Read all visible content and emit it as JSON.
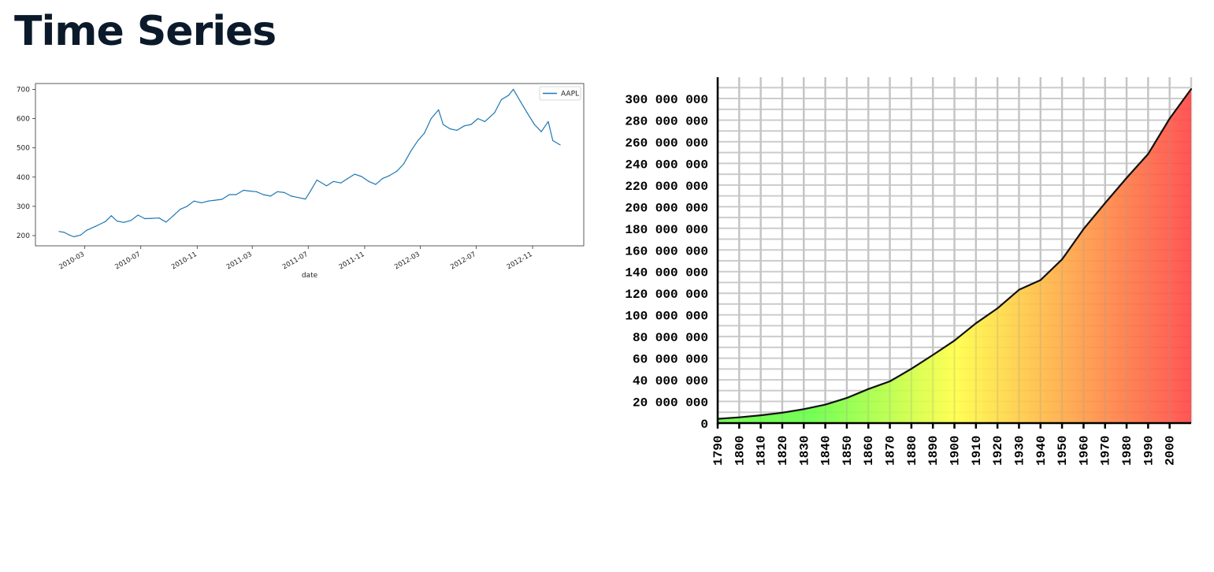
{
  "page": {
    "title": "Time Series"
  },
  "colors": {
    "aapl_line": "#1f77b4",
    "title_text": "#0b1a2b",
    "grid": "#cccccc",
    "gradient_low": "#66ff44",
    "gradient_mid": "#ffff44",
    "gradient_high": "#ff4444"
  },
  "chart_data": [
    {
      "type": "line",
      "title": "",
      "xlabel": "date",
      "ylabel": "",
      "legend": {
        "position": "top-right",
        "entries": [
          "AAPL"
        ]
      },
      "ylim": [
        165,
        720
      ],
      "xlim": [
        "2010-01-04",
        "2012-12-31"
      ],
      "yticks": [
        200,
        300,
        400,
        500,
        600,
        700
      ],
      "xticks": [
        "2010-03",
        "2010-07",
        "2010-11",
        "2011-03",
        "2011-07",
        "2011-11",
        "2012-03",
        "2012-07",
        "2012-11"
      ],
      "grid": false,
      "series": [
        {
          "name": "AAPL",
          "points": [
            [
              "2010-01-04",
              214
            ],
            [
              "2010-01-15",
              211
            ],
            [
              "2010-01-25",
              203
            ],
            [
              "2010-02-05",
              196
            ],
            [
              "2010-02-20",
              202
            ],
            [
              "2010-03-05",
              218
            ],
            [
              "2010-03-25",
              232
            ],
            [
              "2010-04-15",
              248
            ],
            [
              "2010-04-28",
              268
            ],
            [
              "2010-05-10",
              250
            ],
            [
              "2010-05-25",
              245
            ],
            [
              "2010-06-10",
              252
            ],
            [
              "2010-06-25",
              270
            ],
            [
              "2010-07-10",
              258
            ],
            [
              "2010-07-25",
              259
            ],
            [
              "2010-08-10",
              260
            ],
            [
              "2010-08-25",
              246
            ],
            [
              "2010-09-10",
              268
            ],
            [
              "2010-09-25",
              290
            ],
            [
              "2010-10-10",
              300
            ],
            [
              "2010-10-25",
              318
            ],
            [
              "2010-11-10",
              312
            ],
            [
              "2010-11-25",
              318
            ],
            [
              "2010-12-10",
              321
            ],
            [
              "2010-12-25",
              324
            ],
            [
              "2011-01-10",
              340
            ],
            [
              "2011-01-25",
              340
            ],
            [
              "2011-02-10",
              355
            ],
            [
              "2011-02-25",
              352
            ],
            [
              "2011-03-10",
              350
            ],
            [
              "2011-03-25",
              340
            ],
            [
              "2011-04-10",
              335
            ],
            [
              "2011-04-25",
              350
            ],
            [
              "2011-05-10",
              347
            ],
            [
              "2011-05-25",
              335
            ],
            [
              "2011-06-10",
              330
            ],
            [
              "2011-06-25",
              325
            ],
            [
              "2011-07-05",
              350
            ],
            [
              "2011-07-20",
              390
            ],
            [
              "2011-08-10",
              370
            ],
            [
              "2011-08-25",
              385
            ],
            [
              "2011-09-10",
              380
            ],
            [
              "2011-09-25",
              395
            ],
            [
              "2011-10-10",
              410
            ],
            [
              "2011-10-25",
              402
            ],
            [
              "2011-11-10",
              385
            ],
            [
              "2011-11-25",
              375
            ],
            [
              "2011-12-10",
              395
            ],
            [
              "2011-12-25",
              405
            ],
            [
              "2012-01-10",
              420
            ],
            [
              "2012-01-25",
              445
            ],
            [
              "2012-02-10",
              490
            ],
            [
              "2012-02-25",
              525
            ],
            [
              "2012-03-10",
              550
            ],
            [
              "2012-03-25",
              600
            ],
            [
              "2012-04-10",
              630
            ],
            [
              "2012-04-20",
              580
            ],
            [
              "2012-05-05",
              565
            ],
            [
              "2012-05-20",
              560
            ],
            [
              "2012-06-05",
              575
            ],
            [
              "2012-06-20",
              580
            ],
            [
              "2012-07-05",
              600
            ],
            [
              "2012-07-20",
              590
            ],
            [
              "2012-08-10",
              620
            ],
            [
              "2012-08-25",
              665
            ],
            [
              "2012-09-10",
              680
            ],
            [
              "2012-09-20",
              700
            ],
            [
              "2012-10-05",
              660
            ],
            [
              "2012-10-20",
              620
            ],
            [
              "2012-11-05",
              580
            ],
            [
              "2012-11-20",
              555
            ],
            [
              "2012-12-05",
              590
            ],
            [
              "2012-12-15",
              525
            ],
            [
              "2012-12-31",
              510
            ]
          ]
        }
      ]
    },
    {
      "type": "area",
      "title": "",
      "xlabel": "",
      "ylabel": "",
      "xlim": [
        1790,
        2010
      ],
      "ylim": [
        0,
        310000000
      ],
      "grid": true,
      "yticks": [
        0,
        20000000,
        40000000,
        60000000,
        80000000,
        100000000,
        120000000,
        140000000,
        160000000,
        180000000,
        200000000,
        220000000,
        240000000,
        260000000,
        280000000,
        300000000
      ],
      "ytick_labels": [
        "0",
        "20 000 000",
        "40 000 000",
        "60 000 000",
        "80 000 000",
        "100 000 000",
        "120 000 000",
        "140 000 000",
        "160 000 000",
        "180 000 000",
        "200 000 000",
        "220 000 000",
        "240 000 000",
        "260 000 000",
        "280 000 000",
        "300 000 000"
      ],
      "xticks": [
        1790,
        1800,
        1810,
        1820,
        1830,
        1840,
        1850,
        1860,
        1870,
        1880,
        1890,
        1900,
        1910,
        1920,
        1930,
        1940,
        1950,
        1960,
        1970,
        1980,
        1990,
        2000
      ],
      "x": [
        1790,
        1800,
        1810,
        1820,
        1830,
        1840,
        1850,
        1860,
        1870,
        1880,
        1890,
        1900,
        1910,
        1920,
        1930,
        1940,
        1950,
        1960,
        1970,
        1980,
        1990,
        2000,
        2010
      ],
      "values": [
        3929214,
        5308483,
        7239881,
        9638453,
        12866020,
        17069453,
        23191876,
        31443321,
        38558371,
        50189209,
        62979766,
        76212168,
        92228496,
        106021537,
        123202624,
        132164569,
        151325798,
        179323175,
        203302031,
        226542199,
        248709873,
        281421906,
        308745538
      ]
    }
  ]
}
